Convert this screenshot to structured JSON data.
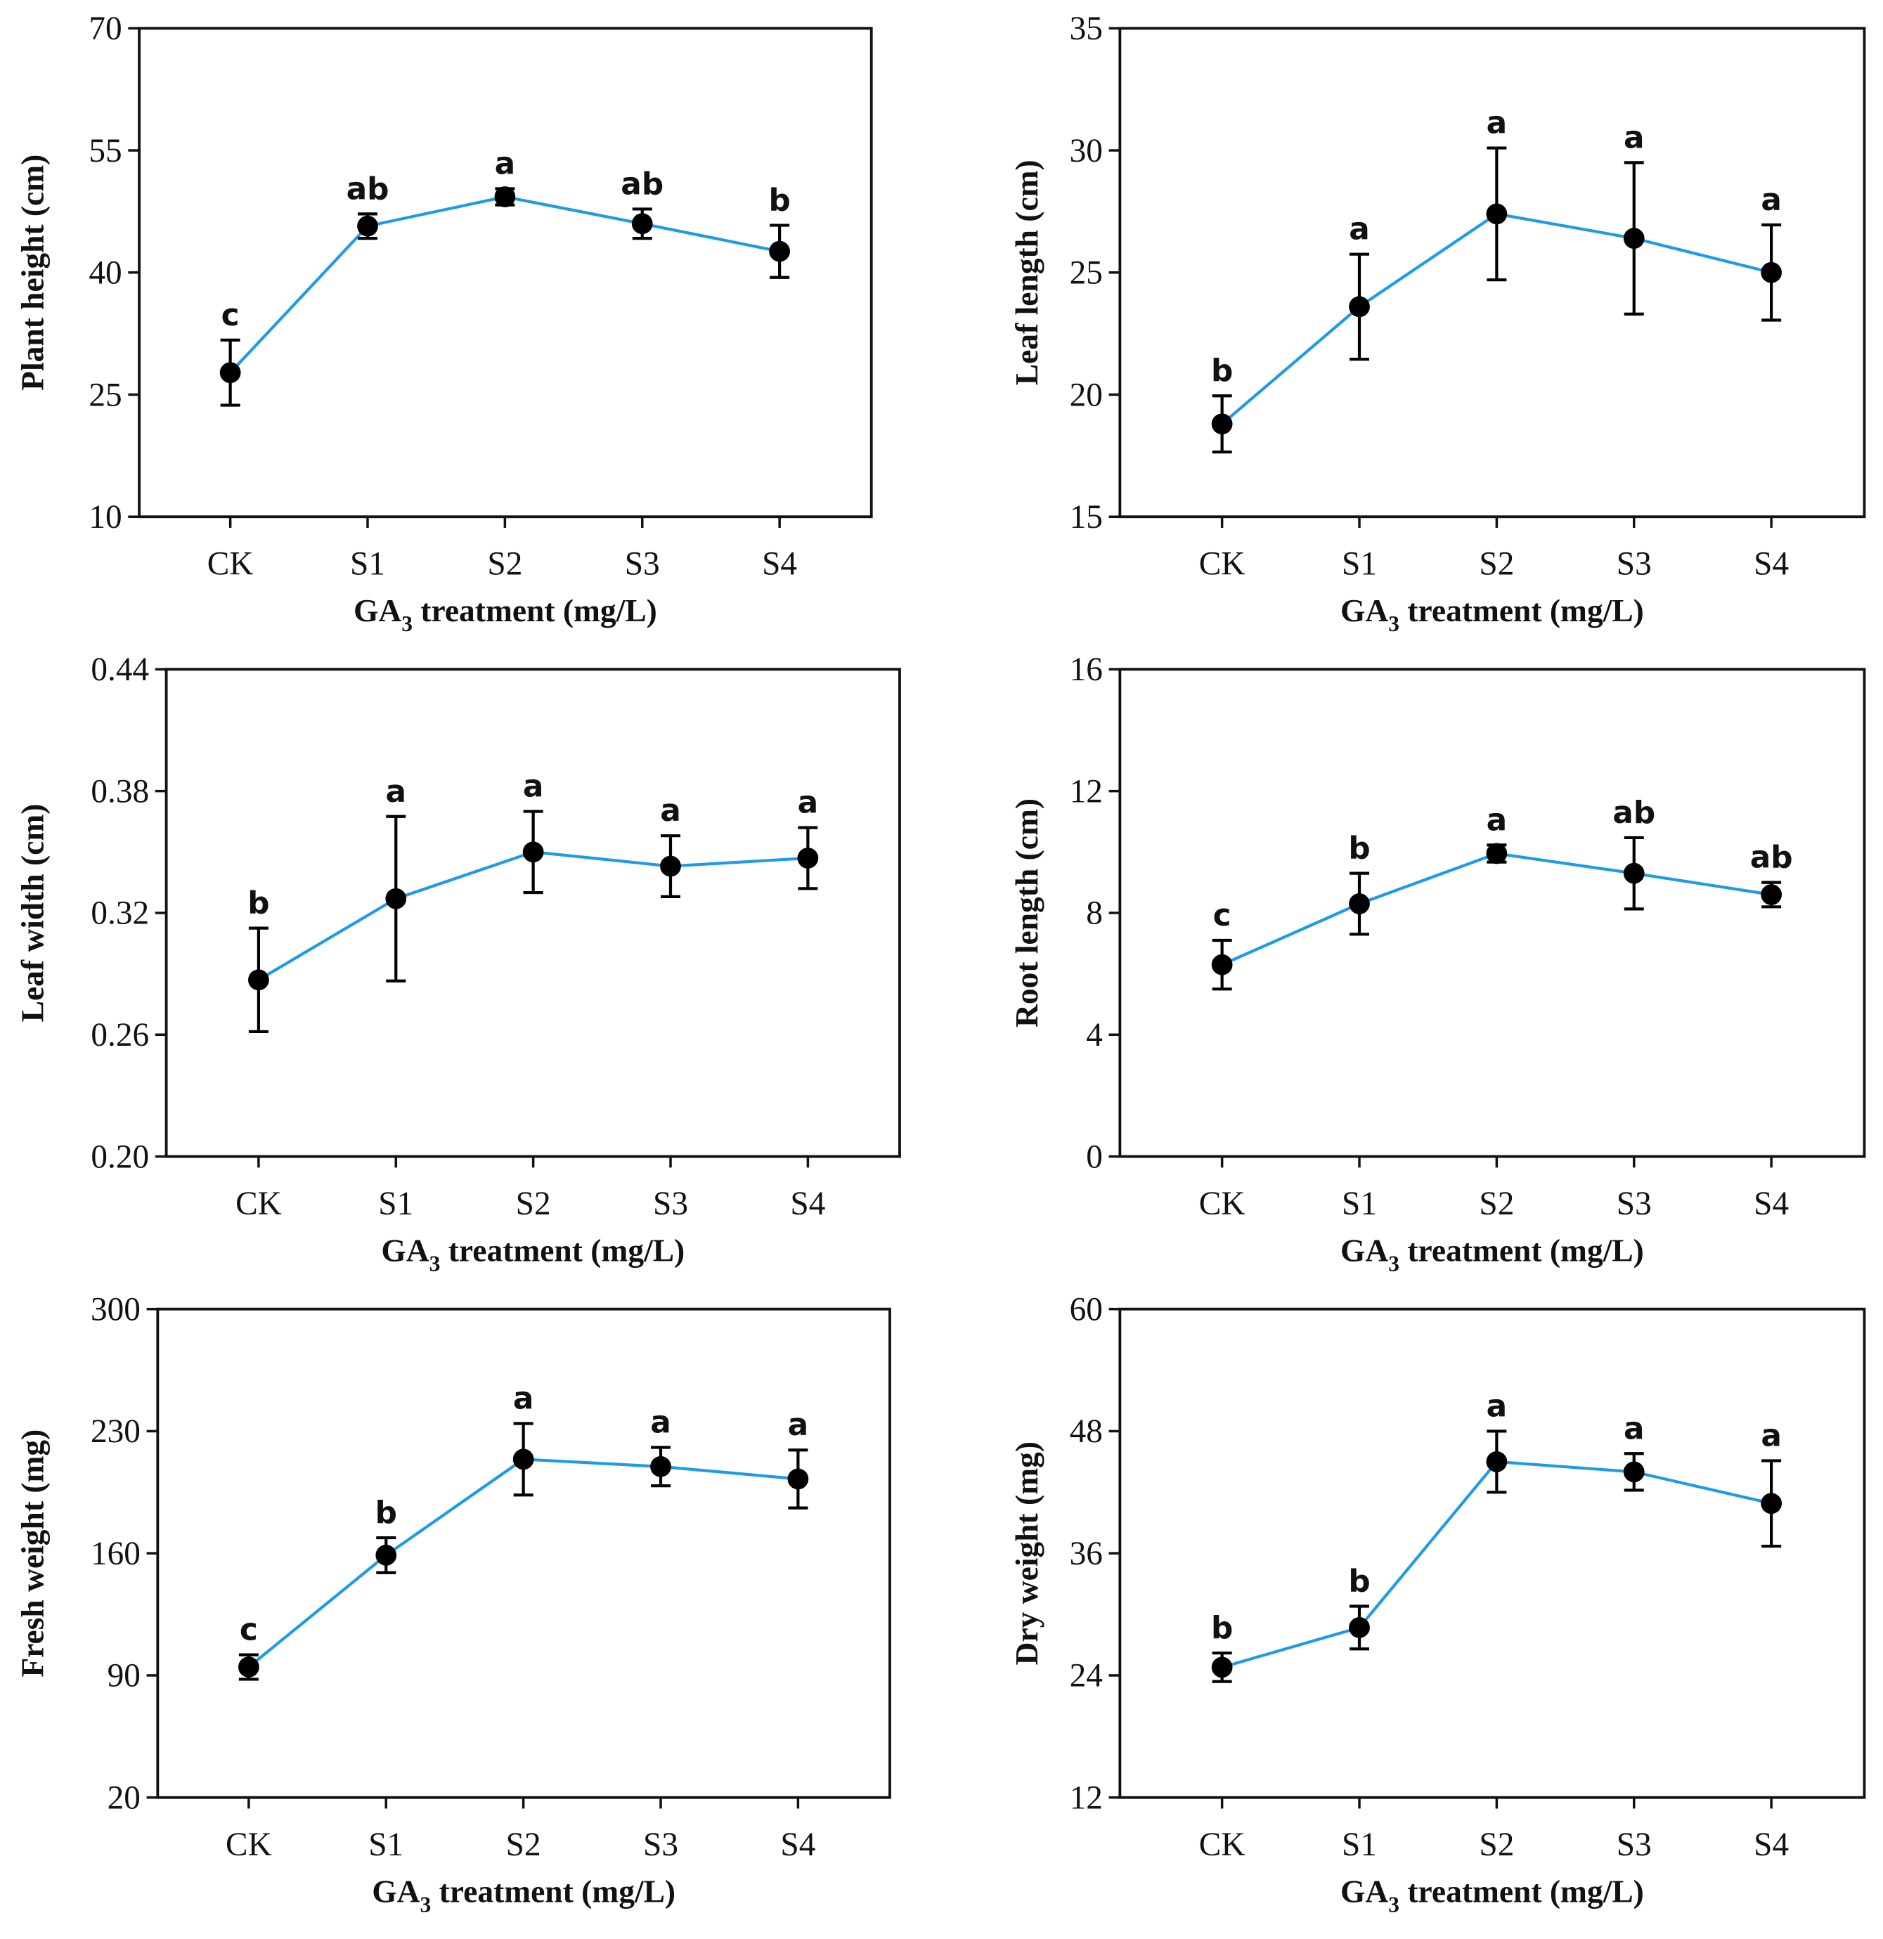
{
  "chart_data": [
    {
      "type": "line",
      "categories": [
        "CK",
        "S1",
        "S2",
        "S3",
        "S4"
      ],
      "ylabel": "Plant height (cm)",
      "xlabel": {
        "main": "GA",
        "sub": "3",
        "rest": " treatment (mg/L)"
      },
      "ylim": [
        10,
        70
      ],
      "yticks": [
        "10",
        "25",
        "40",
        "55",
        "70"
      ],
      "values": [
        27.7,
        45.7,
        49.3,
        46.0,
        42.6
      ],
      "errors": [
        4.0,
        1.5,
        1.0,
        1.8,
        3.2
      ],
      "letters": [
        "c",
        "ab",
        "a",
        "ab",
        "b"
      ]
    },
    {
      "type": "line",
      "categories": [
        "CK",
        "S1",
        "S2",
        "S3",
        "S4"
      ],
      "ylabel": "Leaf length (cm)",
      "xlabel": {
        "main": "GA",
        "sub": "3",
        "rest": " treatment (mg/L)"
      },
      "ylim": [
        15,
        35
      ],
      "yticks": [
        "15",
        "20",
        "25",
        "30",
        "35"
      ],
      "values": [
        18.8,
        23.6,
        27.4,
        26.4,
        25.0
      ],
      "errors": [
        1.15,
        2.15,
        2.7,
        3.1,
        1.95
      ],
      "letters": [
        "b",
        "a",
        "a",
        "a",
        "a"
      ]
    },
    {
      "type": "line",
      "categories": [
        "CK",
        "S1",
        "S2",
        "S3",
        "S4"
      ],
      "ylabel": "Leaf width (cm)",
      "xlabel": {
        "main": "GA",
        "sub": "3",
        "rest": " treatment (mg/L)"
      },
      "ylim": [
        0.2,
        0.44
      ],
      "yticks": [
        "0.20",
        "0.26",
        "0.32",
        "0.38",
        "0.44"
      ],
      "values": [
        0.287,
        0.327,
        0.35,
        0.343,
        0.347
      ],
      "errors": [
        0.0255,
        0.0405,
        0.02,
        0.015,
        0.015
      ],
      "letters": [
        "b",
        "a",
        "a",
        "a",
        "a"
      ]
    },
    {
      "type": "line",
      "categories": [
        "CK",
        "S1",
        "S2",
        "S3",
        "S4"
      ],
      "ylabel": "Root length (cm)",
      "xlabel": {
        "main": "GA",
        "sub": "3",
        "rest": " treatment (mg/L)"
      },
      "ylim": [
        0,
        16
      ],
      "yticks": [
        "0",
        "4",
        "8",
        "12",
        "16"
      ],
      "values": [
        6.3,
        8.3,
        9.95,
        9.3,
        8.6
      ],
      "errors": [
        0.8,
        1.0,
        0.28,
        1.17,
        0.4
      ],
      "letters": [
        "c",
        "b",
        "a",
        "ab",
        "ab"
      ]
    },
    {
      "type": "line",
      "categories": [
        "CK",
        "S1",
        "S2",
        "S3",
        "S4"
      ],
      "ylabel": "Fresh weight (mg)",
      "xlabel": {
        "main": "GA",
        "sub": "3",
        "rest": " treatment (mg/L)"
      },
      "ylim": [
        20,
        300
      ],
      "yticks": [
        "20",
        "90",
        "160",
        "230",
        "300"
      ],
      "values": [
        94.8,
        158.9,
        213.9,
        209.7,
        202.6
      ],
      "errors": [
        7,
        10,
        20.5,
        11,
        16.6
      ],
      "letters": [
        "c",
        "b",
        "a",
        "a",
        "a"
      ]
    },
    {
      "type": "line",
      "categories": [
        "CK",
        "S1",
        "S2",
        "S3",
        "S4"
      ],
      "ylabel": "Dry weight (mg)",
      "xlabel": {
        "main": "GA",
        "sub": "3",
        "rest": " treatment (mg/L)"
      },
      "ylim": [
        12,
        60
      ],
      "yticks": [
        "12",
        "24",
        "36",
        "48",
        "60"
      ],
      "values": [
        24.8,
        28.7,
        45.0,
        44.0,
        40.9
      ],
      "errors": [
        1.4,
        2.1,
        3.0,
        1.8,
        4.2
      ],
      "letters": [
        "b",
        "b",
        "a",
        "a",
        "a"
      ]
    }
  ],
  "colors": {
    "line": "#1e9be8",
    "marker": "#000000",
    "axis": "#111111"
  }
}
